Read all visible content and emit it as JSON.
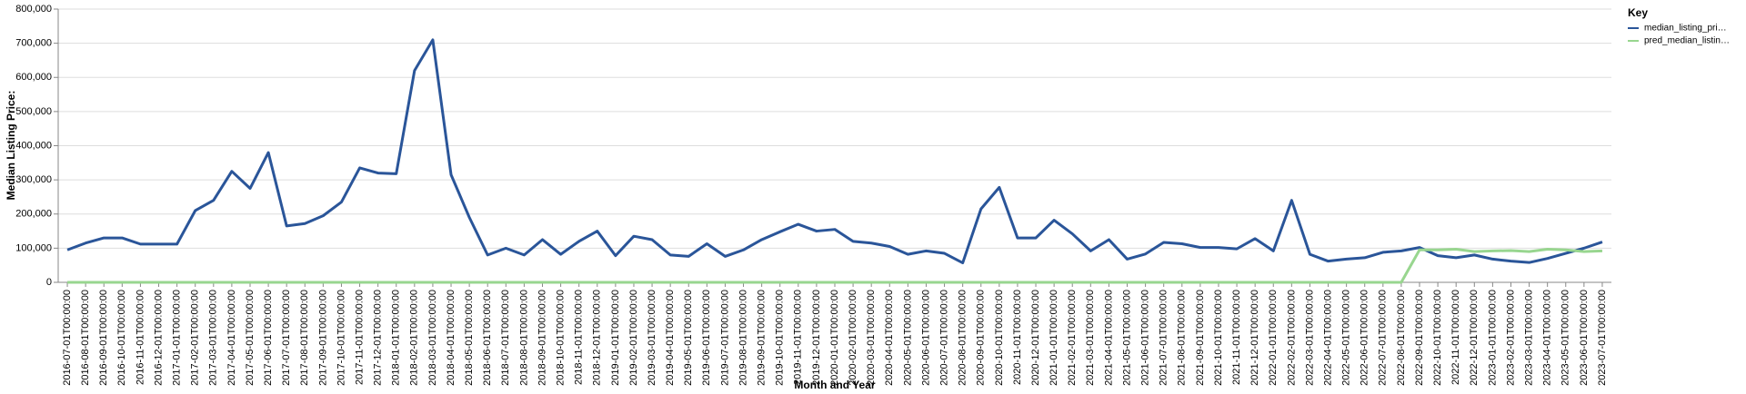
{
  "chart_data": {
    "type": "line",
    "x_label": "Month and Year",
    "y_label": "Median Listing Price:",
    "legend_title": "Key",
    "legend": "top-right",
    "grid": true,
    "categories": [
      "2016-07-01T00:00:00",
      "2016-08-01T00:00:00",
      "2016-09-01T00:00:00",
      "2016-10-01T00:00:00",
      "2016-11-01T00:00:00",
      "2016-12-01T00:00:00",
      "2017-01-01T00:00:00",
      "2017-02-01T00:00:00",
      "2017-03-01T00:00:00",
      "2017-04-01T00:00:00",
      "2017-05-01T00:00:00",
      "2017-06-01T00:00:00",
      "2017-07-01T00:00:00",
      "2017-08-01T00:00:00",
      "2017-09-01T00:00:00",
      "2017-10-01T00:00:00",
      "2017-11-01T00:00:00",
      "2017-12-01T00:00:00",
      "2018-01-01T00:00:00",
      "2018-02-01T00:00:00",
      "2018-03-01T00:00:00",
      "2018-04-01T00:00:00",
      "2018-05-01T00:00:00",
      "2018-06-01T00:00:00",
      "2018-07-01T00:00:00",
      "2018-08-01T00:00:00",
      "2018-09-01T00:00:00",
      "2018-10-01T00:00:00",
      "2018-11-01T00:00:00",
      "2018-12-01T00:00:00",
      "2019-01-01T00:00:00",
      "2019-02-01T00:00:00",
      "2019-03-01T00:00:00",
      "2019-04-01T00:00:00",
      "2019-05-01T00:00:00",
      "2019-06-01T00:00:00",
      "2019-07-01T00:00:00",
      "2019-08-01T00:00:00",
      "2019-09-01T00:00:00",
      "2019-10-01T00:00:00",
      "2019-11-01T00:00:00",
      "2019-12-01T00:00:00",
      "2020-01-01T00:00:00",
      "2020-02-01T00:00:00",
      "2020-03-01T00:00:00",
      "2020-04-01T00:00:00",
      "2020-05-01T00:00:00",
      "2020-06-01T00:00:00",
      "2020-07-01T00:00:00",
      "2020-08-01T00:00:00",
      "2020-09-01T00:00:00",
      "2020-10-01T00:00:00",
      "2020-11-01T00:00:00",
      "2020-12-01T00:00:00",
      "2021-01-01T00:00:00",
      "2021-02-01T00:00:00",
      "2021-03-01T00:00:00",
      "2021-04-01T00:00:00",
      "2021-05-01T00:00:00",
      "2021-06-01T00:00:00",
      "2021-07-01T00:00:00",
      "2021-08-01T00:00:00",
      "2021-09-01T00:00:00",
      "2021-10-01T00:00:00",
      "2021-11-01T00:00:00",
      "2021-12-01T00:00:00",
      "2022-01-01T00:00:00",
      "2022-02-01T00:00:00",
      "2022-03-01T00:00:00",
      "2022-04-01T00:00:00",
      "2022-05-01T00:00:00",
      "2022-06-01T00:00:00",
      "2022-07-01T00:00:00",
      "2022-08-01T00:00:00",
      "2022-09-01T00:00:00",
      "2022-10-01T00:00:00",
      "2022-11-01T00:00:00",
      "2022-12-01T00:00:00",
      "2023-01-01T00:00:00",
      "2023-02-01T00:00:00",
      "2023-03-01T00:00:00",
      "2023-04-01T00:00:00",
      "2023-05-01T00:00:00",
      "2023-06-01T00:00:00",
      "2023-07-01T00:00:00"
    ],
    "series": [
      {
        "name": "median_listing_pri…",
        "color": "#2a5599",
        "values": [
          95000,
          115000,
          130000,
          130000,
          112000,
          112000,
          112000,
          210000,
          240000,
          325000,
          275000,
          380000,
          165000,
          172000,
          195000,
          235000,
          335000,
          320000,
          318000,
          620000,
          710000,
          315000,
          190000,
          80000,
          100000,
          80000,
          125000,
          82000,
          120000,
          150000,
          78000,
          135000,
          125000,
          80000,
          76000,
          113000,
          76000,
          95000,
          125000,
          148000,
          170000,
          150000,
          155000,
          120000,
          115000,
          105000,
          82000,
          92000,
          85000,
          57000,
          215000,
          278000,
          130000,
          130000,
          182000,
          142000,
          92000,
          125000,
          68000,
          83000,
          117000,
          113000,
          102000,
          102000,
          98000,
          128000,
          92000,
          240000,
          82000,
          62000,
          68000,
          72000,
          88000,
          92000,
          102000,
          78000,
          72000,
          80000,
          68000,
          62000,
          58000,
          70000,
          85000,
          100000,
          118000
        ]
      },
      {
        "name": "pred_median_listin…",
        "color": "#98d68f",
        "values": [
          0,
          0,
          0,
          0,
          0,
          0,
          0,
          0,
          0,
          0,
          0,
          0,
          0,
          0,
          0,
          0,
          0,
          0,
          0,
          0,
          0,
          0,
          0,
          0,
          0,
          0,
          0,
          0,
          0,
          0,
          0,
          0,
          0,
          0,
          0,
          0,
          0,
          0,
          0,
          0,
          0,
          0,
          0,
          0,
          0,
          0,
          0,
          0,
          0,
          0,
          0,
          0,
          0,
          0,
          0,
          0,
          0,
          0,
          0,
          0,
          0,
          0,
          0,
          0,
          0,
          0,
          0,
          0,
          0,
          0,
          0,
          0,
          0,
          0,
          95000,
          95000,
          97000,
          90000,
          92000,
          93000,
          90000,
          97000,
          95000,
          90000,
          92000
        ]
      }
    ],
    "ylim": [
      0,
      800000
    ],
    "yticks": [
      0,
      {
        "value": 100000,
        "label": "100,000"
      },
      {
        "value": 200000,
        "label": "200,000"
      },
      {
        "value": 300000,
        "label": "300,000"
      },
      {
        "value": 400000,
        "label": "400,000"
      },
      {
        "value": 500000,
        "label": "500,000"
      },
      {
        "value": 600000,
        "label": "600,000"
      },
      {
        "value": 700000,
        "label": "700,000"
      },
      {
        "value": 800000,
        "label": "800,000"
      }
    ]
  }
}
